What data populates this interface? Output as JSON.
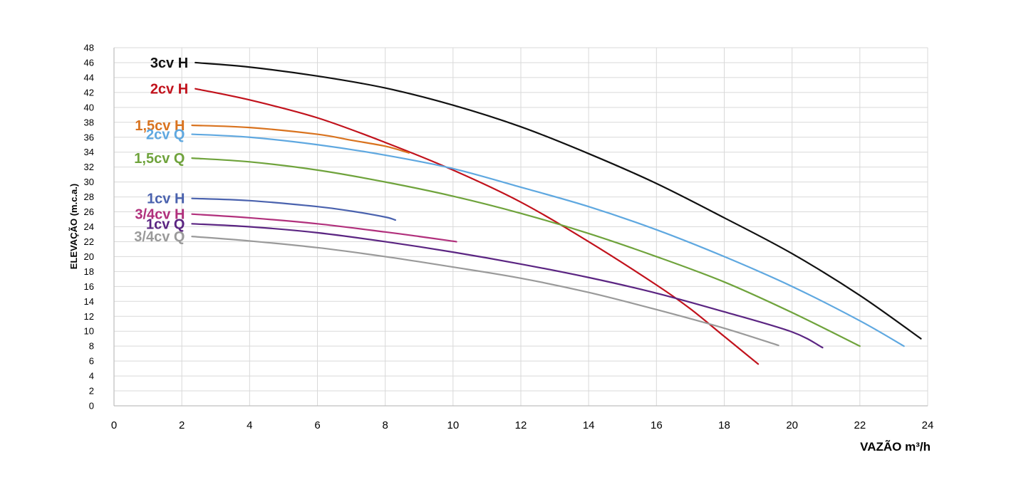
{
  "chart_data": {
    "type": "line",
    "title": "",
    "xlabel": "VAZÃO m³/h",
    "ylabel": "ELEVAÇÃO (m.c.a.)",
    "xlim": [
      0,
      24
    ],
    "ylim": [
      0,
      48
    ],
    "x_ticks": [
      0,
      2,
      4,
      6,
      8,
      10,
      12,
      14,
      16,
      18,
      20,
      22,
      24
    ],
    "y_ticks": [
      0,
      2,
      4,
      6,
      8,
      10,
      12,
      14,
      16,
      18,
      20,
      22,
      24,
      26,
      28,
      30,
      32,
      34,
      36,
      38,
      40,
      42,
      44,
      46,
      48
    ],
    "grid": true,
    "legend": "none",
    "series": [
      {
        "name": "3cv H",
        "color": "#111111",
        "points": [
          [
            2.4,
            46
          ],
          [
            4,
            45.4
          ],
          [
            6,
            44.2
          ],
          [
            8,
            42.6
          ],
          [
            10,
            40.3
          ],
          [
            12,
            37.4
          ],
          [
            14,
            33.8
          ],
          [
            16,
            29.8
          ],
          [
            18,
            25.2
          ],
          [
            20,
            20.4
          ],
          [
            22,
            14.8
          ],
          [
            23.8,
            9
          ]
        ]
      },
      {
        "name": "2cv H",
        "color": "#c1121c",
        "points": [
          [
            2.4,
            42.5
          ],
          [
            4,
            41
          ],
          [
            6,
            38.6
          ],
          [
            8,
            35.3
          ],
          [
            10,
            31.6
          ],
          [
            12,
            27.3
          ],
          [
            14,
            22
          ],
          [
            16,
            16.2
          ],
          [
            17,
            13
          ],
          [
            18,
            9.3
          ],
          [
            19,
            5.6
          ]
        ]
      },
      {
        "name": "1,5cv H",
        "color": "#d9731f",
        "points": [
          [
            2.3,
            37.6
          ],
          [
            4,
            37.3
          ],
          [
            6,
            36.4
          ],
          [
            7,
            35.6
          ],
          [
            8,
            34.8
          ],
          [
            8.7,
            33.9
          ]
        ]
      },
      {
        "name": "2cv Q",
        "color": "#5fa8e0",
        "points": [
          [
            2.3,
            36.4
          ],
          [
            4,
            36
          ],
          [
            6,
            35
          ],
          [
            8,
            33.6
          ],
          [
            10,
            31.8
          ],
          [
            12,
            29.3
          ],
          [
            14,
            26.7
          ],
          [
            16,
            23.6
          ],
          [
            18,
            20
          ],
          [
            20,
            16
          ],
          [
            22,
            11.4
          ],
          [
            23.3,
            8
          ]
        ]
      },
      {
        "name": "1,5cv Q",
        "color": "#6fa33c",
        "points": [
          [
            2.3,
            33.2
          ],
          [
            4,
            32.7
          ],
          [
            6,
            31.6
          ],
          [
            8,
            30
          ],
          [
            10,
            28.1
          ],
          [
            12,
            25.8
          ],
          [
            14,
            23.1
          ],
          [
            16,
            20
          ],
          [
            18,
            16.6
          ],
          [
            20,
            12.5
          ],
          [
            22,
            8
          ]
        ]
      },
      {
        "name": "1cv H",
        "color": "#4a62ae",
        "points": [
          [
            2.3,
            27.8
          ],
          [
            4,
            27.5
          ],
          [
            6,
            26.7
          ],
          [
            7,
            26.1
          ],
          [
            8,
            25.3
          ],
          [
            8.3,
            24.9
          ]
        ]
      },
      {
        "name": "3/4cv H",
        "color": "#b1307c",
        "points": [
          [
            2.3,
            25.7
          ],
          [
            4,
            25.2
          ],
          [
            6,
            24.4
          ],
          [
            8,
            23.3
          ],
          [
            9,
            22.7
          ],
          [
            10.1,
            22
          ]
        ]
      },
      {
        "name": "1cv Q",
        "color": "#5b2582",
        "points": [
          [
            2.3,
            24.4
          ],
          [
            4,
            24
          ],
          [
            6,
            23.2
          ],
          [
            8,
            22
          ],
          [
            10,
            20.6
          ],
          [
            12,
            19
          ],
          [
            14,
            17.2
          ],
          [
            16,
            15.1
          ],
          [
            18,
            12.6
          ],
          [
            20,
            9.9
          ],
          [
            20.9,
            7.8
          ]
        ]
      },
      {
        "name": "3/4cv Q",
        "color": "#9a9a9a",
        "points": [
          [
            2.3,
            22.7
          ],
          [
            4,
            22.1
          ],
          [
            6,
            21.2
          ],
          [
            8,
            20
          ],
          [
            10,
            18.6
          ],
          [
            12,
            17.1
          ],
          [
            14,
            15.2
          ],
          [
            16,
            12.9
          ],
          [
            18,
            10.4
          ],
          [
            19.6,
            8.1
          ]
        ]
      }
    ]
  },
  "colors": {
    "grid": "#d9d9d9",
    "axis": "#bfbfbf",
    "text": "#000000"
  }
}
